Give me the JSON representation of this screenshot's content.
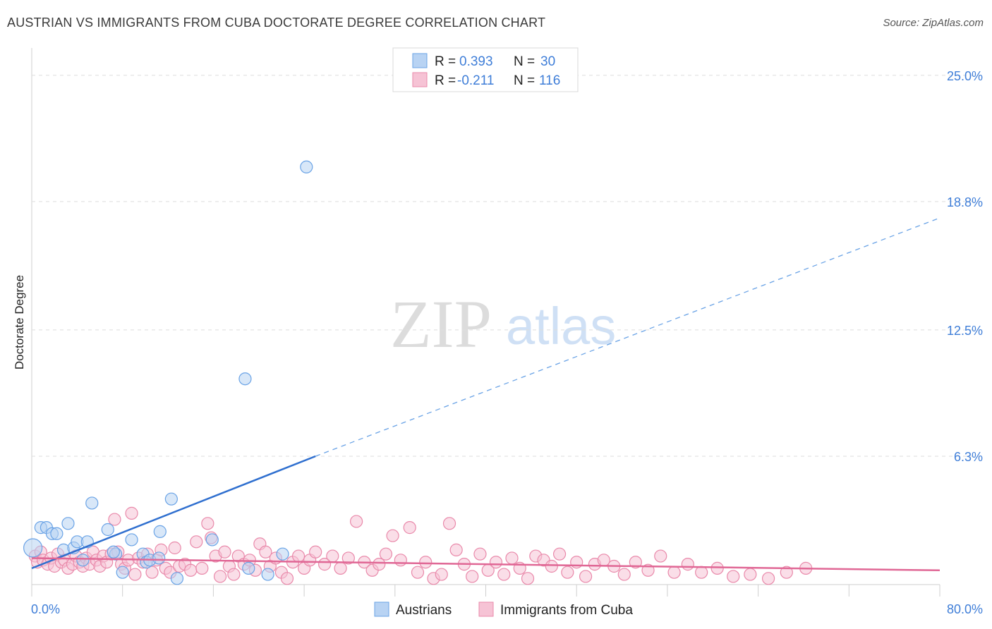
{
  "title": "AUSTRIAN VS IMMIGRANTS FROM CUBA DOCTORATE DEGREE CORRELATION CHART",
  "source": "Source: ZipAtlas.com",
  "watermark": {
    "zip": "ZIP",
    "atlas": "atlas"
  },
  "colors": {
    "blue": "#6aa3e6",
    "blue_fill": "#b8d3f3",
    "blue_line": "#2f6fcf",
    "pink": "#e989aa",
    "pink_fill": "#f6c3d5",
    "pink_line": "#e06795",
    "tick": "#3f7ed8"
  },
  "legend": {
    "rows": [
      {
        "r_label": "R =",
        "r_value": "0.393",
        "n_label": "N =",
        "n_value": "30"
      },
      {
        "r_label": "R =",
        "r_value": "-0.211",
        "n_label": "N =",
        "n_value": "116"
      }
    ]
  },
  "chart_data": {
    "type": "scatter",
    "title": "AUSTRIAN VS IMMIGRANTS FROM CUBA DOCTORATE DEGREE CORRELATION CHART",
    "xlabel": "",
    "ylabel": "Doctorate Degree",
    "xlim": [
      0,
      80
    ],
    "ylim": [
      0,
      27
    ],
    "x_tick_labels": [
      "0.0%",
      "80.0%"
    ],
    "y_ticks": [
      6.3,
      12.5,
      18.8,
      25.0
    ],
    "y_tick_labels": [
      "6.3%",
      "12.5%",
      "18.8%",
      "25.0%"
    ],
    "grid": true,
    "legend_position": "top-center",
    "series": [
      {
        "name": "Austrians",
        "r": 0.393,
        "n": 30,
        "trend": {
          "x0": 0,
          "y0": 0.8,
          "x1": 25,
          "y1": 6.3,
          "x_dash_end": 80,
          "y_dash_end": 18.0
        },
        "points": [
          [
            0.1,
            1.8
          ],
          [
            0.8,
            2.8
          ],
          [
            1.3,
            2.8
          ],
          [
            1.8,
            2.5
          ],
          [
            2.2,
            2.5
          ],
          [
            2.8,
            1.7
          ],
          [
            3.2,
            3.0
          ],
          [
            3.7,
            1.8
          ],
          [
            4.0,
            2.1
          ],
          [
            4.9,
            2.1
          ],
          [
            5.3,
            4.0
          ],
          [
            6.7,
            2.7
          ],
          [
            7.4,
            1.5
          ],
          [
            8.0,
            0.6
          ],
          [
            8.8,
            2.2
          ],
          [
            9.8,
            1.5
          ],
          [
            10.1,
            1.1
          ],
          [
            10.4,
            1.2
          ],
          [
            11.2,
            1.3
          ],
          [
            11.3,
            2.6
          ],
          [
            12.3,
            4.2
          ],
          [
            12.8,
            0.3
          ],
          [
            15.9,
            2.2
          ],
          [
            18.8,
            10.1
          ],
          [
            19.1,
            0.8
          ],
          [
            20.8,
            0.5
          ],
          [
            22.1,
            1.5
          ],
          [
            24.2,
            20.5
          ],
          [
            7.2,
            1.6
          ],
          [
            4.5,
            1.2
          ]
        ]
      },
      {
        "name": "Immigrants from Cuba",
        "r": -0.211,
        "n": 116,
        "trend": {
          "x0": 0,
          "y0": 1.3,
          "x1": 80,
          "y1": 0.7
        },
        "points": [
          [
            0.3,
            1.4
          ],
          [
            0.5,
            1.1
          ],
          [
            0.8,
            1.6
          ],
          [
            1.0,
            1.2
          ],
          [
            1.4,
            1.0
          ],
          [
            1.7,
            1.3
          ],
          [
            2.0,
            0.9
          ],
          [
            2.3,
            1.5
          ],
          [
            2.6,
            1.1
          ],
          [
            2.9,
            1.2
          ],
          [
            3.2,
            0.8
          ],
          [
            3.6,
            1.0
          ],
          [
            3.9,
            1.4
          ],
          [
            4.2,
            1.1
          ],
          [
            4.5,
            0.9
          ],
          [
            4.8,
            1.3
          ],
          [
            5.1,
            1.0
          ],
          [
            5.4,
            1.6
          ],
          [
            5.7,
            1.2
          ],
          [
            6.0,
            0.9
          ],
          [
            6.3,
            1.4
          ],
          [
            6.6,
            1.1
          ],
          [
            7.0,
            1.5
          ],
          [
            7.3,
            3.2
          ],
          [
            7.6,
            1.6
          ],
          [
            7.9,
            1.0
          ],
          [
            8.2,
            0.8
          ],
          [
            8.5,
            1.2
          ],
          [
            8.8,
            3.5
          ],
          [
            9.1,
            0.5
          ],
          [
            9.4,
            1.3
          ],
          [
            9.8,
            1.1
          ],
          [
            10.2,
            1.5
          ],
          [
            10.6,
            0.6
          ],
          [
            11.0,
            1.2
          ],
          [
            11.4,
            1.7
          ],
          [
            11.8,
            0.8
          ],
          [
            12.2,
            0.6
          ],
          [
            12.6,
            1.8
          ],
          [
            13.0,
            0.9
          ],
          [
            13.5,
            1.0
          ],
          [
            14.0,
            0.7
          ],
          [
            14.5,
            2.1
          ],
          [
            15.0,
            0.8
          ],
          [
            15.5,
            3.0
          ],
          [
            15.8,
            2.3
          ],
          [
            16.2,
            1.4
          ],
          [
            16.6,
            0.4
          ],
          [
            17.0,
            1.6
          ],
          [
            17.4,
            0.9
          ],
          [
            17.8,
            0.5
          ],
          [
            18.2,
            1.4
          ],
          [
            18.7,
            1.0
          ],
          [
            19.2,
            1.2
          ],
          [
            19.7,
            0.7
          ],
          [
            20.1,
            2.0
          ],
          [
            20.6,
            1.6
          ],
          [
            21.0,
            0.9
          ],
          [
            21.5,
            1.3
          ],
          [
            22.0,
            0.6
          ],
          [
            22.5,
            0.3
          ],
          [
            23.0,
            1.1
          ],
          [
            23.5,
            1.4
          ],
          [
            24.0,
            0.8
          ],
          [
            24.5,
            1.2
          ],
          [
            25.0,
            1.6
          ],
          [
            25.8,
            1.0
          ],
          [
            26.5,
            1.4
          ],
          [
            27.2,
            0.8
          ],
          [
            27.9,
            1.3
          ],
          [
            28.6,
            3.1
          ],
          [
            29.3,
            1.1
          ],
          [
            30.0,
            0.7
          ],
          [
            30.6,
            1.0
          ],
          [
            31.2,
            1.5
          ],
          [
            31.8,
            2.4
          ],
          [
            32.5,
            1.2
          ],
          [
            33.3,
            2.8
          ],
          [
            34.0,
            0.6
          ],
          [
            34.7,
            1.1
          ],
          [
            35.4,
            0.3
          ],
          [
            36.1,
            0.5
          ],
          [
            36.8,
            3.0
          ],
          [
            37.4,
            1.7
          ],
          [
            38.1,
            1.0
          ],
          [
            38.8,
            0.4
          ],
          [
            39.5,
            1.5
          ],
          [
            40.2,
            0.7
          ],
          [
            40.9,
            1.1
          ],
          [
            41.6,
            0.5
          ],
          [
            42.3,
            1.3
          ],
          [
            43.0,
            0.8
          ],
          [
            43.7,
            0.3
          ],
          [
            44.4,
            1.4
          ],
          [
            45.1,
            1.2
          ],
          [
            45.8,
            0.9
          ],
          [
            46.5,
            1.5
          ],
          [
            47.2,
            0.6
          ],
          [
            48.0,
            1.1
          ],
          [
            48.8,
            0.4
          ],
          [
            49.6,
            1.0
          ],
          [
            50.4,
            1.2
          ],
          [
            51.3,
            0.9
          ],
          [
            52.2,
            0.5
          ],
          [
            53.2,
            1.1
          ],
          [
            54.3,
            0.7
          ],
          [
            55.4,
            1.4
          ],
          [
            56.6,
            0.6
          ],
          [
            57.8,
            1.0
          ],
          [
            59.0,
            0.6
          ],
          [
            60.4,
            0.8
          ],
          [
            61.8,
            0.4
          ],
          [
            63.3,
            0.5
          ],
          [
            64.9,
            0.3
          ],
          [
            66.5,
            0.6
          ],
          [
            68.2,
            0.8
          ]
        ]
      }
    ]
  },
  "bottom_legend": {
    "items": [
      "Austrians",
      "Immigrants from Cuba"
    ]
  }
}
